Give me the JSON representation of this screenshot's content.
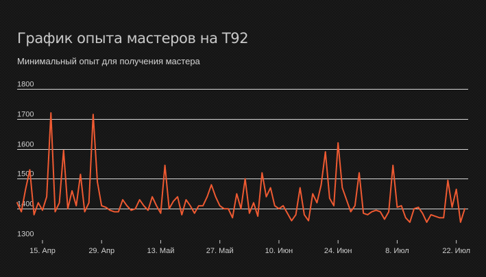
{
  "title": "График опыта мастеров на Т92",
  "subtitle": "Минимальный опыт для получения мастера",
  "colors": {
    "background": "#151515",
    "grid": "#d9d9d9",
    "series": "#ef5a32",
    "text": "#d4d4d4"
  },
  "chart_data": {
    "type": "line",
    "title": "График опыта мастеров на Т92",
    "subtitle": "Минимальный опыт для получения мастера",
    "xlabel": "",
    "ylabel": "",
    "ylim": [
      1300,
      1800
    ],
    "yticks": [
      1300,
      1400,
      1500,
      1600,
      1700,
      1800
    ],
    "xlim": [
      "2024-04-09",
      "2024-07-24"
    ],
    "xtick_dates": [
      "2024-04-15",
      "2024-04-29",
      "2024-05-13",
      "2024-05-27",
      "2024-06-10",
      "2024-06-24",
      "2024-07-08",
      "2024-07-22"
    ],
    "xtick_labels": [
      "15. Апр",
      "29. Апр",
      "13. Май",
      "27. Май",
      "10. Июн",
      "24. Июн",
      "8. Июл",
      "22. Июл"
    ],
    "grid": true,
    "legend": "none",
    "series": [
      {
        "color": "#ef5a32",
        "x": [
          "2024-04-09",
          "2024-04-10",
          "2024-04-11",
          "2024-04-12",
          "2024-04-13",
          "2024-04-14",
          "2024-04-15",
          "2024-04-16",
          "2024-04-17",
          "2024-04-18",
          "2024-04-19",
          "2024-04-20",
          "2024-04-21",
          "2024-04-22",
          "2024-04-23",
          "2024-04-24",
          "2024-04-25",
          "2024-04-26",
          "2024-04-27",
          "2024-04-28",
          "2024-04-29",
          "2024-04-30",
          "2024-05-01",
          "2024-05-02",
          "2024-05-03",
          "2024-05-04",
          "2024-05-05",
          "2024-05-06",
          "2024-05-07",
          "2024-05-08",
          "2024-05-09",
          "2024-05-10",
          "2024-05-11",
          "2024-05-12",
          "2024-05-13",
          "2024-05-14",
          "2024-05-15",
          "2024-05-16",
          "2024-05-17",
          "2024-05-18",
          "2024-05-19",
          "2024-05-20",
          "2024-05-21",
          "2024-05-22",
          "2024-05-23",
          "2024-05-24",
          "2024-05-25",
          "2024-05-26",
          "2024-05-27",
          "2024-05-28",
          "2024-05-29",
          "2024-05-30",
          "2024-05-31",
          "2024-06-01",
          "2024-06-02",
          "2024-06-03",
          "2024-06-04",
          "2024-06-05",
          "2024-06-06",
          "2024-06-07",
          "2024-06-08",
          "2024-06-09",
          "2024-06-10",
          "2024-06-11",
          "2024-06-12",
          "2024-06-13",
          "2024-06-14",
          "2024-06-15",
          "2024-06-16",
          "2024-06-17",
          "2024-06-18",
          "2024-06-19",
          "2024-06-20",
          "2024-06-21",
          "2024-06-22",
          "2024-06-23",
          "2024-06-24",
          "2024-06-25",
          "2024-06-26",
          "2024-06-27",
          "2024-06-28",
          "2024-06-29",
          "2024-06-30",
          "2024-07-01",
          "2024-07-02",
          "2024-07-03",
          "2024-07-04",
          "2024-07-05",
          "2024-07-06",
          "2024-07-07",
          "2024-07-08",
          "2024-07-09",
          "2024-07-10",
          "2024-07-11",
          "2024-07-12",
          "2024-07-13",
          "2024-07-14",
          "2024-07-15",
          "2024-07-16",
          "2024-07-17",
          "2024-07-18",
          "2024-07-19",
          "2024-07-20",
          "2024-07-21",
          "2024-07-22",
          "2024-07-23",
          "2024-07-24"
        ],
        "values": [
          1420,
          1390,
          1465,
          1530,
          1380,
          1420,
          1395,
          1440,
          1720,
          1390,
          1420,
          1595,
          1400,
          1460,
          1410,
          1515,
          1390,
          1420,
          1715,
          1490,
          1410,
          1405,
          1395,
          1390,
          1390,
          1430,
          1410,
          1395,
          1400,
          1430,
          1410,
          1395,
          1440,
          1410,
          1385,
          1545,
          1400,
          1425,
          1440,
          1380,
          1430,
          1410,
          1385,
          1410,
          1410,
          1440,
          1480,
          1440,
          1410,
          1400,
          1400,
          1370,
          1450,
          1400,
          1500,
          1385,
          1420,
          1375,
          1520,
          1440,
          1470,
          1410,
          1400,
          1410,
          1385,
          1360,
          1380,
          1470,
          1380,
          1360,
          1450,
          1420,
          1480,
          1590,
          1435,
          1410,
          1620,
          1470,
          1430,
          1390,
          1410,
          1520,
          1385,
          1380,
          1390,
          1395,
          1390,
          1365,
          1390,
          1545,
          1405,
          1410,
          1370,
          1355,
          1400,
          1405,
          1385,
          1355,
          1380,
          1375,
          1370,
          1370,
          1495,
          1405,
          1465,
          1355,
          1400
        ]
      }
    ]
  }
}
